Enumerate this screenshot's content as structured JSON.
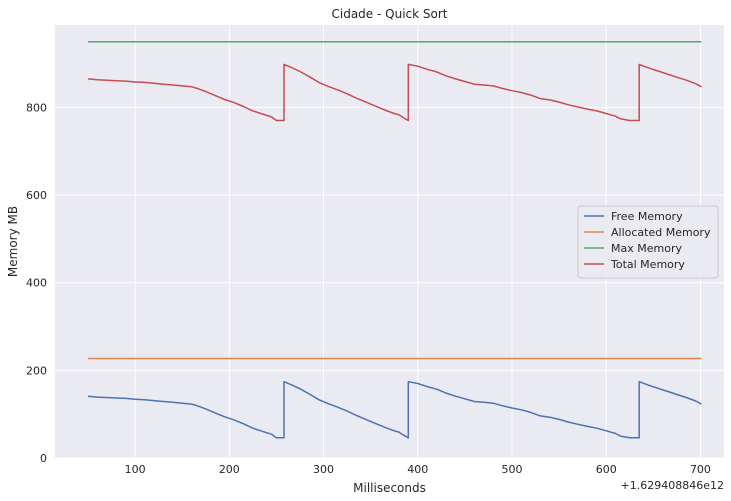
{
  "chart_data": {
    "type": "line",
    "title": "Cidade - Quick Sort",
    "xlabel": "Milliseconds",
    "ylabel": "Memory MB",
    "x_offset_label": "+1.629408846e12",
    "xlim": [
      15,
      725
    ],
    "ylim": [
      0,
      988
    ],
    "xticks": [
      100,
      200,
      300,
      400,
      500,
      600,
      700
    ],
    "yticks": [
      0,
      200,
      400,
      600,
      800
    ],
    "grid": true,
    "legend_position": "center-right",
    "series": [
      {
        "name": "Free Memory",
        "color": "#4c72b0",
        "x": [
          50,
          60,
          70,
          80,
          90,
          100,
          110,
          120,
          130,
          140,
          150,
          160,
          165,
          175,
          185,
          195,
          205,
          215,
          225,
          235,
          245,
          250,
          255,
          258,
          258,
          265,
          275,
          285,
          295,
          305,
          315,
          325,
          335,
          345,
          355,
          365,
          375,
          380,
          385,
          390,
          390,
          400,
          410,
          420,
          430,
          440,
          450,
          460,
          470,
          480,
          490,
          500,
          510,
          520,
          530,
          540,
          550,
          560,
          570,
          580,
          590,
          600,
          610,
          615,
          625,
          635,
          635,
          645,
          655,
          665,
          675,
          685,
          695,
          701
        ],
        "values": [
          141,
          139,
          138,
          137,
          136,
          134,
          133,
          131,
          129,
          127,
          125,
          123,
          120,
          112,
          103,
          94,
          87,
          78,
          68,
          61,
          54,
          46,
          46,
          46,
          174,
          168,
          158,
          146,
          133,
          124,
          116,
          107,
          97,
          88,
          79,
          70,
          62,
          59,
          52,
          46,
          174,
          170,
          163,
          157,
          148,
          141,
          135,
          129,
          127,
          125,
          119,
          114,
          110,
          104,
          96,
          93,
          88,
          82,
          77,
          72,
          68,
          62,
          56,
          50,
          46,
          46,
          174,
          166,
          159,
          152,
          145,
          138,
          130,
          123
        ]
      },
      {
        "name": "Allocated Memory",
        "color": "#dd8452",
        "x": [
          50,
          701
        ],
        "values": [
          227,
          227
        ]
      },
      {
        "name": "Max Memory",
        "color": "#55a868",
        "x": [
          50,
          701
        ],
        "values": [
          950,
          950
        ]
      },
      {
        "name": "Total Memory",
        "color": "#c44e52",
        "x": [
          50,
          60,
          70,
          80,
          90,
          100,
          110,
          120,
          130,
          140,
          150,
          160,
          165,
          175,
          185,
          195,
          205,
          215,
          225,
          235,
          245,
          250,
          255,
          258,
          258,
          265,
          275,
          285,
          295,
          305,
          315,
          325,
          335,
          345,
          355,
          365,
          375,
          380,
          385,
          390,
          390,
          400,
          410,
          420,
          430,
          440,
          450,
          460,
          470,
          480,
          490,
          500,
          510,
          520,
          530,
          540,
          550,
          560,
          570,
          580,
          590,
          600,
          610,
          615,
          625,
          635,
          635,
          645,
          655,
          665,
          675,
          685,
          695,
          701
        ],
        "values": [
          865,
          863,
          862,
          861,
          860,
          858,
          857,
          855,
          853,
          851,
          849,
          847,
          844,
          836,
          827,
          818,
          811,
          802,
          792,
          785,
          778,
          770,
          770,
          770,
          898,
          892,
          882,
          870,
          857,
          848,
          840,
          831,
          821,
          812,
          803,
          794,
          786,
          783,
          776,
          770,
          898,
          894,
          887,
          881,
          872,
          865,
          859,
          853,
          851,
          849,
          843,
          838,
          834,
          828,
          820,
          817,
          812,
          806,
          801,
          796,
          792,
          786,
          780,
          774,
          770,
          770,
          898,
          890,
          883,
          876,
          869,
          862,
          854,
          847
        ]
      }
    ]
  }
}
